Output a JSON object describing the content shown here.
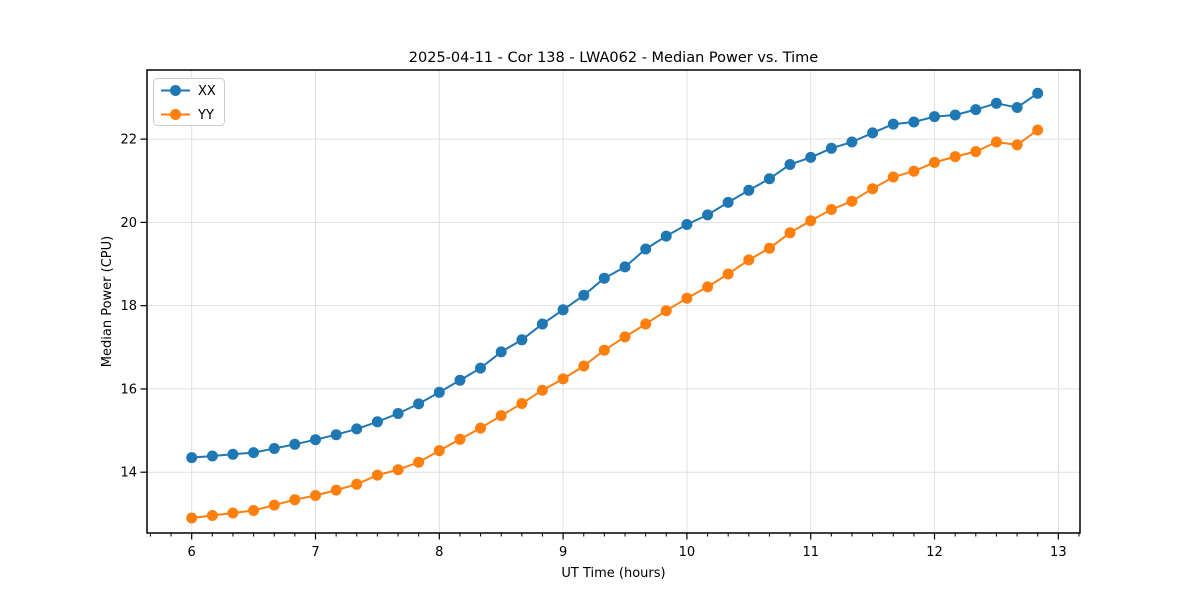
{
  "figure": {
    "title": "2025-04-11 - Cor 138 - LWA062 - Median Power vs. Time"
  },
  "chart_data": {
    "type": "line",
    "title": "2025-04-11 - Cor 138 - LWA062 - Median Power vs. Time",
    "xlabel": "UT Time (hours)",
    "ylabel": "Median Power (CPU)",
    "xlim": [
      5.639,
      13.175
    ],
    "ylim": [
      12.54,
      23.66
    ],
    "x_major_ticks": [
      6,
      7,
      8,
      9,
      10,
      11,
      12,
      13
    ],
    "x_tick_labels": [
      "6",
      "7",
      "8",
      "9",
      "10",
      "11",
      "12",
      "13"
    ],
    "x_minor_tick_interval": 0.16667,
    "y_major_ticks": [
      14,
      16,
      18,
      20,
      22
    ],
    "y_tick_labels": [
      "14",
      "16",
      "18",
      "20",
      "22"
    ],
    "grid": true,
    "grid_color": "#e0e0e0",
    "marker": "circle",
    "legend": {
      "position": "upper-left",
      "entries": [
        {
          "label": "XX",
          "color": "#1f77b4"
        },
        {
          "label": "YY",
          "color": "#ff7f0e"
        }
      ]
    },
    "x": [
      6,
      6.167,
      6.333,
      6.5,
      6.667,
      6.833,
      7,
      7.167,
      7.333,
      7.5,
      7.667,
      7.833,
      8,
      8.167,
      8.333,
      8.5,
      8.667,
      8.833,
      9,
      9.167,
      9.333,
      9.5,
      9.667,
      9.833,
      10,
      10.167,
      10.333,
      10.5,
      10.667,
      10.833,
      11,
      11.167,
      11.333,
      11.5,
      11.667,
      11.833,
      12,
      12.167,
      12.333,
      12.5,
      12.667,
      12.833
    ],
    "series": [
      {
        "name": "XX",
        "color": "#1f77b4",
        "values": [
          14.35,
          14.39,
          14.43,
          14.47,
          14.57,
          14.67,
          14.78,
          14.9,
          15.04,
          15.21,
          15.41,
          15.64,
          15.92,
          16.21,
          16.5,
          16.89,
          17.18,
          17.56,
          17.9,
          18.25,
          18.66,
          18.93,
          19.36,
          19.67,
          19.95,
          20.18,
          20.48,
          20.77,
          21.05,
          21.39,
          21.56,
          21.78,
          21.93,
          22.15,
          22.36,
          22.41,
          22.54,
          22.58,
          22.71,
          22.86,
          22.76,
          23.1
        ]
      },
      {
        "name": "YY",
        "color": "#ff7f0e",
        "values": [
          12.9,
          12.96,
          13.02,
          13.08,
          13.21,
          13.34,
          13.44,
          13.57,
          13.71,
          13.93,
          14.06,
          14.24,
          14.52,
          14.79,
          15.06,
          15.36,
          15.65,
          15.97,
          16.24,
          16.55,
          16.93,
          17.25,
          17.56,
          17.88,
          18.18,
          18.45,
          18.76,
          19.1,
          19.38,
          19.75,
          20.04,
          20.31,
          20.51,
          20.81,
          21.09,
          21.23,
          21.44,
          21.58,
          21.7,
          21.93,
          21.86,
          22.22
        ]
      }
    ]
  }
}
